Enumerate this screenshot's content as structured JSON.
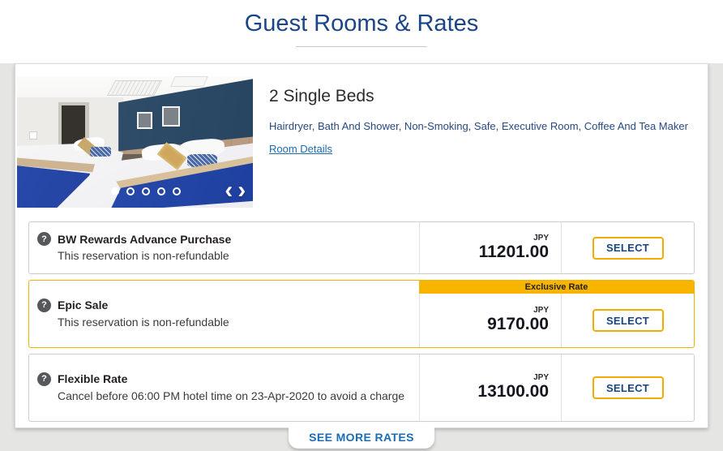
{
  "header": {
    "title": "Guest Rooms & Rates"
  },
  "room": {
    "name": "2 Single Beds",
    "amenities": "Hairdryer, Bath And Shower, Non-Smoking, Safe, Executive Room, Coffee And Tea Maker",
    "details_link": "Room Details",
    "carousel": {
      "dot_count": 5,
      "active_dot": 1
    }
  },
  "rates": [
    {
      "name": "BW Rewards Advance Purchase",
      "description": "This reservation is non-refundable",
      "currency": "JPY",
      "price": "11201.00",
      "select_label": "SELECT"
    },
    {
      "name": "Epic Sale",
      "description": "This reservation is non-refundable",
      "badge": "Exclusive Rate",
      "currency": "JPY",
      "price": "9170.00",
      "select_label": "SELECT"
    },
    {
      "name": "Flexible Rate",
      "description": "Cancel before 06:00 PM hotel time on 23-Apr-2020 to avoid a charge",
      "currency": "JPY",
      "price": "13100.00",
      "select_label": "SELECT"
    }
  ],
  "see_more_label": "SEE MORE RATES",
  "icons": {
    "help": "?",
    "chevron_left": "‹",
    "chevron_right": "›"
  },
  "colors": {
    "brand_blue": "#1A4480",
    "accent_gold": "#F7B500",
    "select_border_gold": "#F0AC00",
    "link_blue": "#1E6BB2"
  }
}
